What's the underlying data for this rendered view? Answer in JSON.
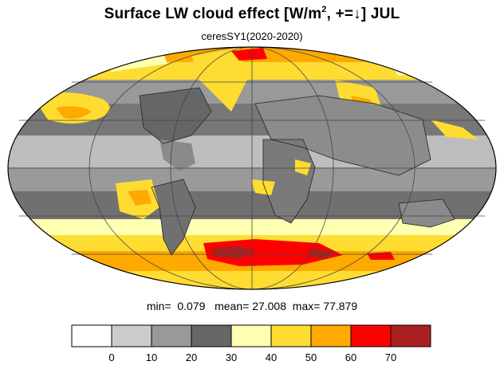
{
  "title": {
    "main_prefix": "Surface LW cloud effect [W/m",
    "superscript": "2",
    "main_suffix": ", +=↓]  JUL",
    "subtitle": "ceresSY1(2020-2020)"
  },
  "stats": {
    "min_label": "min=",
    "min_value": "0.079",
    "mean_label": "mean=",
    "mean_value": "27.008",
    "max_label": "max=",
    "max_value": "77.879"
  },
  "colorbar": {
    "colors": [
      "#ffffff",
      "#cccccc",
      "#999999",
      "#666666",
      "#ffffb2",
      "#ffdc32",
      "#ffaa00",
      "#ff0000",
      "#aa2020"
    ],
    "tick_labels": [
      "0",
      "10",
      "20",
      "30",
      "40",
      "50",
      "60",
      "70"
    ]
  },
  "map": {
    "projection": "mollweide",
    "variable": "surface longwave cloud radiative effect",
    "month": "JUL",
    "units": "W/m2"
  }
}
